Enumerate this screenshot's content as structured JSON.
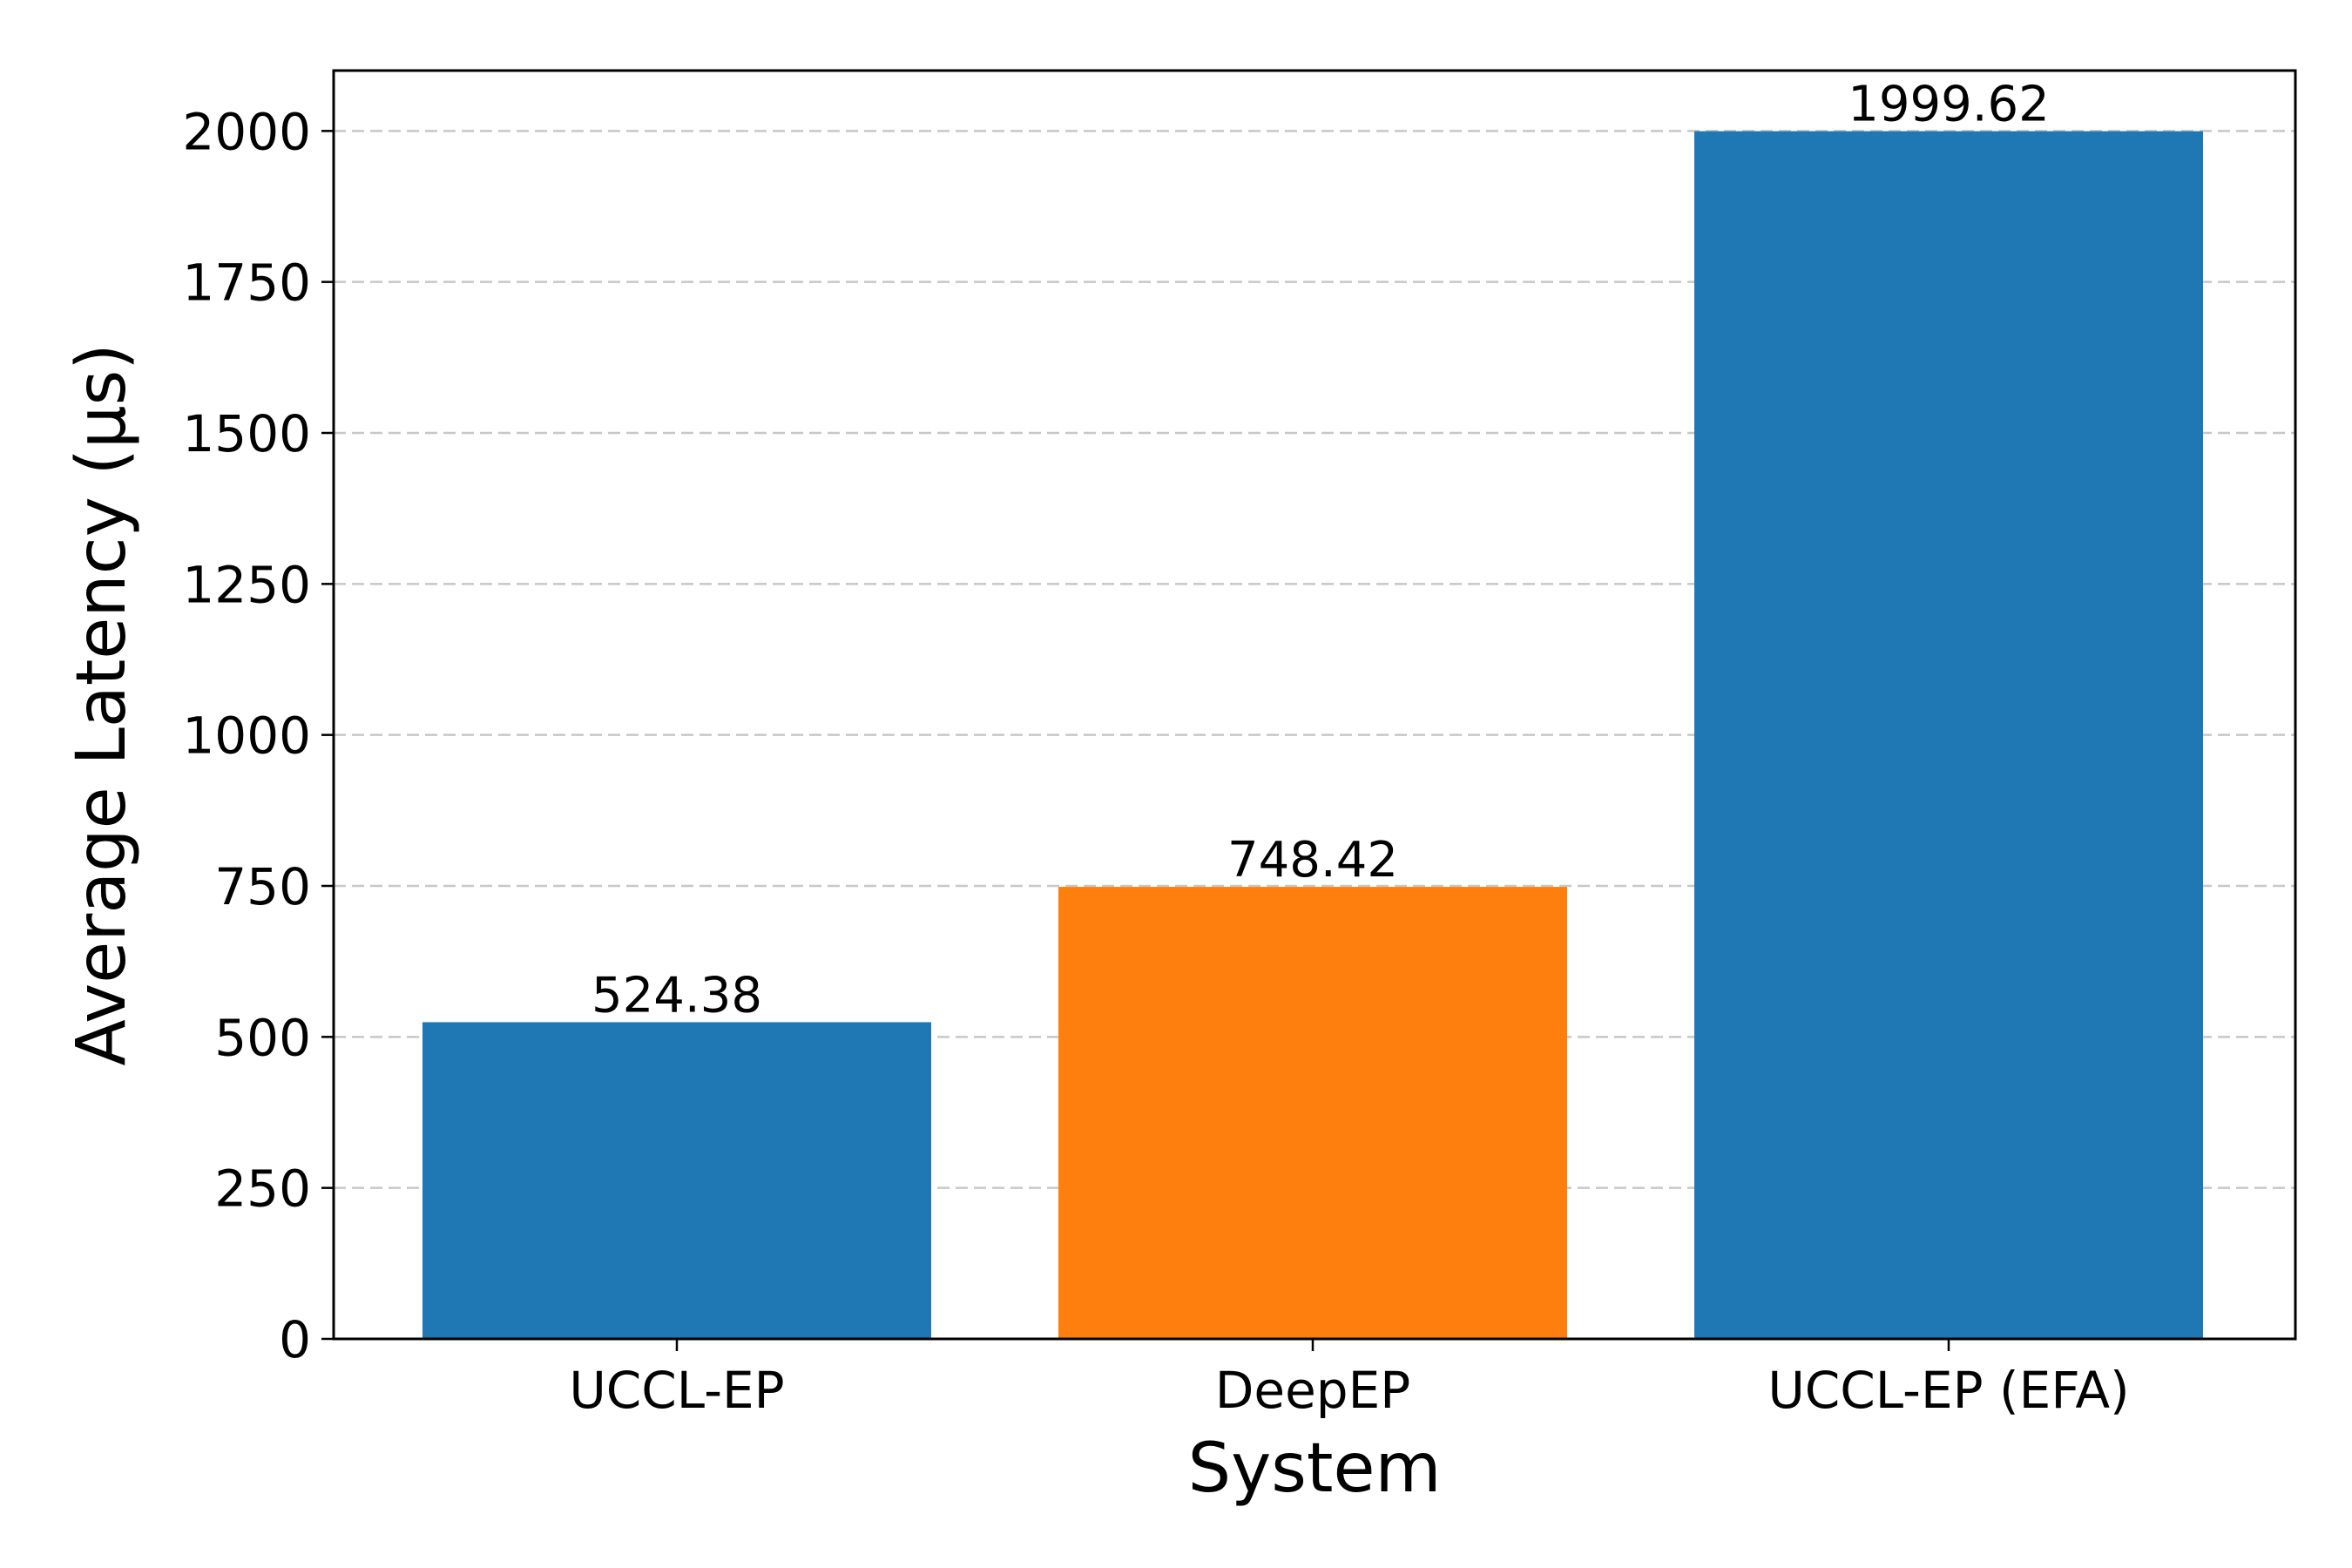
{
  "chart_data": {
    "type": "bar",
    "categories": [
      "UCCL-EP",
      "DeepEP",
      "UCCL-EP (EFA)"
    ],
    "values": [
      524.38,
      748.42,
      1999.62
    ],
    "data_labels": [
      "524.38",
      "748.42",
      "1999.62"
    ],
    "colors": [
      "#1f77b4",
      "#ff7f0e",
      "#1f77b4"
    ],
    "xlabel": "System",
    "ylabel": "Average Latency (µs)",
    "ylim": [
      0,
      2100
    ],
    "yticks": [
      0,
      250,
      500,
      750,
      1000,
      1250,
      1500,
      1750,
      2000
    ],
    "grid": "y-dashed",
    "legend": "none"
  }
}
